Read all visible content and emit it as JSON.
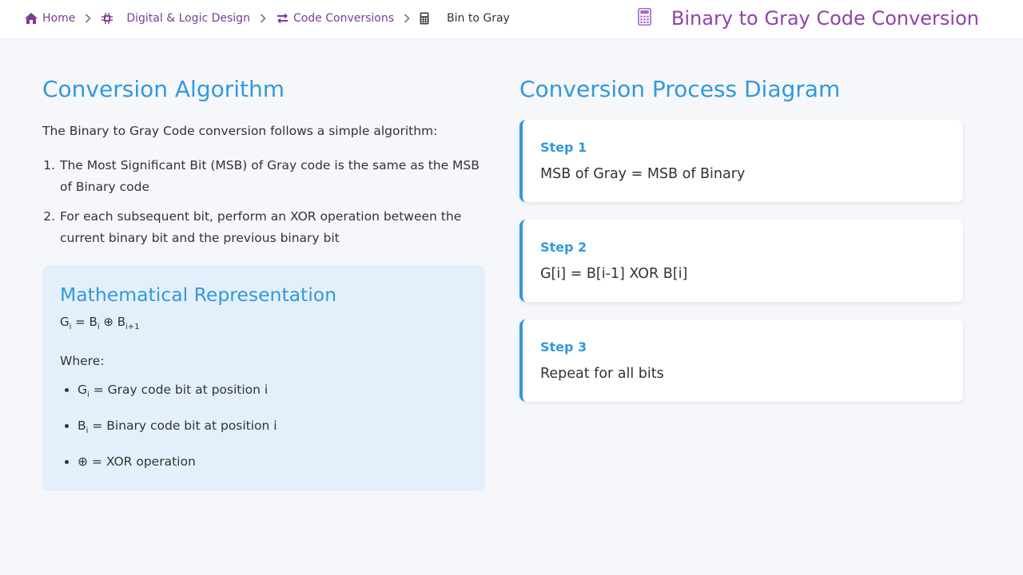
{
  "breadcrumb": {
    "items": [
      {
        "label": "Home",
        "icon": "home-icon"
      },
      {
        "label": "Digital & Logic Design",
        "icon": "chip-icon"
      },
      {
        "label": "Code Conversions",
        "icon": "exchange-icon"
      },
      {
        "label": "Bin to Gray",
        "icon": "calculator-icon"
      }
    ]
  },
  "header": {
    "title": "Binary to Gray Code Conversion",
    "icon": "calculator-icon"
  },
  "algorithm": {
    "heading": "Conversion Algorithm",
    "intro": "The Binary to Gray Code conversion follows a simple algorithm:",
    "steps": [
      "The Most Significant Bit (MSB) of Gray code is the same as the MSB of Binary code",
      "For each subsequent bit, perform an XOR operation between the current binary bit and the previous binary bit"
    ]
  },
  "math": {
    "heading": "Mathematical Representation",
    "formula": {
      "g": "G",
      "g_sub": "i",
      "eq": " = ",
      "b1": "B",
      "b1_sub": "i",
      "op": " ⊕ ",
      "b2": "B",
      "b2_sub": "i+1"
    },
    "where_label": "Where:",
    "definitions": [
      {
        "symbol": "G",
        "sub": "i",
        "text": " = Gray code bit at position i"
      },
      {
        "symbol": "B",
        "sub": "i",
        "text": " = Binary code bit at position i"
      },
      {
        "symbol": "⊕",
        "sub": "",
        "text": " = XOR operation"
      }
    ]
  },
  "diagram": {
    "heading": "Conversion Process Diagram",
    "steps": [
      {
        "label": "Step 1",
        "text": "MSB of Gray = MSB of Binary"
      },
      {
        "label": "Step 2",
        "text": "G[i] = B[i-1] XOR B[i]"
      },
      {
        "label": "Step 3",
        "text": "Repeat for all bits"
      }
    ]
  },
  "colors": {
    "accent_purple": "#8e44ad",
    "link_purple": "#7d3c98",
    "accent_blue": "#3498db",
    "math_box_bg": "#e3f0fc"
  }
}
